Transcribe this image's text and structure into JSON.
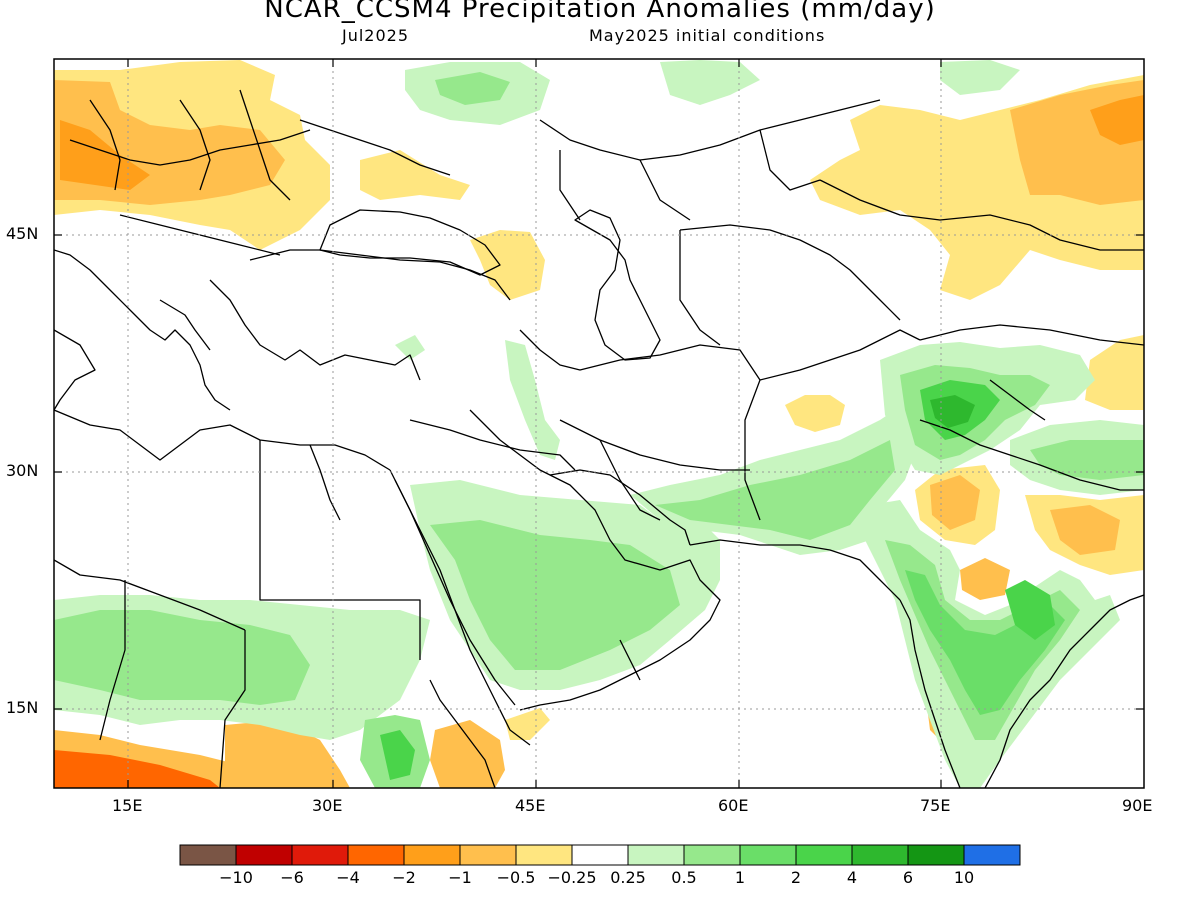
{
  "header": {
    "title": "NCAR_CCSM4 Precipitation Anomalies (mm/day)",
    "target_month": "Jul2025",
    "initial_conditions": "May2025 initial conditions"
  },
  "axes": {
    "lat_labels": [
      "45N",
      "30N",
      "15N"
    ],
    "lon_labels": [
      "15E",
      "30E",
      "45E",
      "60E",
      "75E",
      "90E"
    ]
  },
  "colorbar": {
    "colors": [
      "#7a5545",
      "#c00000",
      "#e01a0a",
      "#ff6600",
      "#ff9f1a",
      "#ffbf4d",
      "#ffe680",
      "#ffffff",
      "#c8f5c0",
      "#96e88c",
      "#6ade68",
      "#4ad44a",
      "#2eb82e",
      "#149614",
      "#1f6fe6"
    ],
    "labels": [
      "−10",
      "−6",
      "−4",
      "−2",
      "−1",
      "−0.5",
      "−0.25",
      "0.25",
      "0.5",
      "1",
      "2",
      "4",
      "6",
      "10"
    ]
  },
  "colors": {
    "light_orange": "#ffe680",
    "orange": "#ffbf4d",
    "dark_orange": "#ff9f1a",
    "red_orange": "#ff6600",
    "light_green": "#c8f5c0",
    "green": "#96e88c",
    "mid_green": "#6ade68",
    "dark_green": "#4ad44a",
    "darker_green": "#2eb82e"
  }
}
